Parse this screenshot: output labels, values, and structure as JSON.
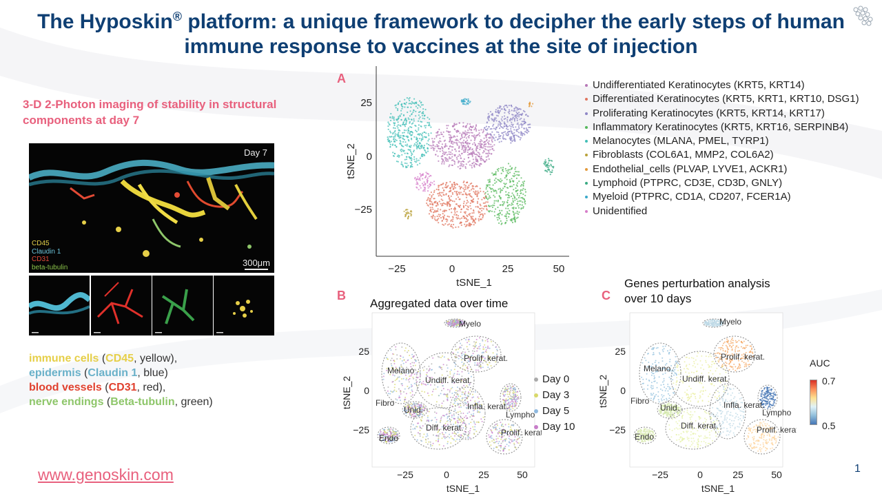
{
  "header": {
    "title_part1": "The Hyposkin",
    "title_reg": "®",
    "title_part2": " platform: a unique framework to decipher the early steps of human immune response to vaccines at the site of injection"
  },
  "left": {
    "heading": "3-D 2-Photon imaging of stability in structural components at day 7",
    "micro": {
      "day": "Day 7",
      "legend": [
        "CD45",
        "Claudin 1",
        "CD31",
        "beta-tubulin"
      ],
      "scale": "300μm"
    },
    "legend_lines": [
      {
        "lead": "immune cells",
        "open": " (",
        "marker": "CD45",
        "tail": ", yellow),"
      },
      {
        "lead": "epidermis",
        "open": " (",
        "marker": "Claudin 1",
        "tail": ", blue)"
      },
      {
        "lead": "blood vessels",
        "open": " (",
        "marker": "CD31",
        "tail": ", red),"
      },
      {
        "lead": "nerve endings",
        "open": " (",
        "marker": "Beta-tubulin",
        "tail": ", green)"
      }
    ]
  },
  "footer": {
    "link": "www.genoskin.com",
    "page": "1"
  },
  "colors": {
    "title": "#0f3f73",
    "accent": "#e8607d"
  },
  "panel_a": {
    "letter": "A",
    "xlabel": "tSNE_1",
    "ylabel": "tSNE_2",
    "xticks": [
      "−25",
      "0",
      "25",
      "50"
    ],
    "yticks": [
      "25",
      "0",
      "−25"
    ],
    "cell_types": [
      {
        "label": "Undifferentiated Keratinocytes (KRT5, KRT14)",
        "color": "#b678b7"
      },
      {
        "label": "Differentiated Keratinocytes (KRT5, KRT1, KRT10, DSG1)",
        "color": "#e0755f"
      },
      {
        "label": "Proliferating Keratinocytes (KRT5, KRT14, KRT17)",
        "color": "#8e86c6"
      },
      {
        "label": "Inflammatory Keratinocytes (KRT5, KRT16, SERPINB4)",
        "color": "#55b85b"
      },
      {
        "label": "Melanocytes (MLANA, PMEL, TYRP1)",
        "color": "#43bfb7"
      },
      {
        "label": "Fibroblasts (COL6A1, MMP2, COL6A2)",
        "color": "#b9a23a"
      },
      {
        "label": "Endothelial_cells (PLVAP, LYVE1, ACKR1)",
        "color": "#e39a3b"
      },
      {
        "label": "Lymphoid (PTPRC, CD3E, CD3D, GNLY)",
        "color": "#3aaa83"
      },
      {
        "label": "Myeloid (PTPRC, CD1A, CD207, FCER1A)",
        "color": "#3aa9c9"
      },
      {
        "label": "Unidentified",
        "color": "#d67dc9"
      }
    ]
  },
  "panel_b": {
    "letter": "B",
    "title": "Aggregated data over time",
    "xlabel": "tSNE_1",
    "ylabel": "tSNE_2",
    "xticks": [
      "−25",
      "0",
      "25",
      "50"
    ],
    "yticks": [
      "25",
      "0",
      "−25"
    ],
    "cluster_labels": [
      "Myelo",
      "Prolif. kerat.",
      "Melano",
      "Undiff. kerat.",
      "Fibro",
      "Unid.",
      "Infla. kerat.",
      "Lympho",
      "Diff. kerat.",
      "Endo",
      "Prolif. kerat."
    ],
    "legend": [
      {
        "label": "Day 0",
        "color": "#aaaaaa"
      },
      {
        "label": "Day 3",
        "color": "#d8d86a"
      },
      {
        "label": "Day 5",
        "color": "#8fb9e0"
      },
      {
        "label": "Day 10",
        "color": "#c77dc9"
      }
    ]
  },
  "panel_c": {
    "letter": "C",
    "title_line1": "Genes perturbation analysis",
    "title_line2": "over 10 days",
    "xlabel": "tSNE_1",
    "ylabel": "tSNE_2",
    "xticks": [
      "−25",
      "0",
      "25",
      "50"
    ],
    "yticks": [
      "25",
      "0",
      "−25"
    ],
    "cluster_labels": [
      "Myelo",
      "Prolif. kerat.",
      "Melano",
      "Undiff. kerat.",
      "Fibro",
      "Unid.",
      "Infla. kerat.",
      "Lympho",
      "Diff. kerat.",
      "Endo",
      "Prolif. kerat."
    ],
    "auc_label": "AUC",
    "auc_max": "0.7",
    "auc_min": "0.5"
  }
}
